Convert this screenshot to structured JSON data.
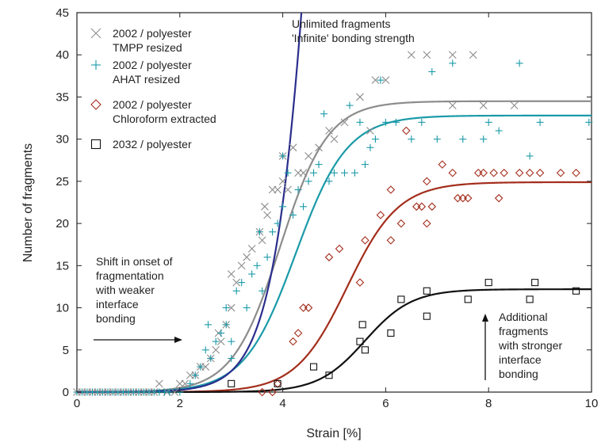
{
  "chart_data": {
    "type": "scatter",
    "xlabel": "Strain [%]",
    "ylabel": "Number of fragments",
    "xlim": [
      0,
      10
    ],
    "ylim": [
      0,
      45
    ],
    "xticks": [
      0,
      2,
      4,
      6,
      8,
      10
    ],
    "yticks": [
      0,
      5,
      10,
      15,
      20,
      25,
      30,
      35,
      40,
      45
    ],
    "legend_position": "top-left",
    "series": [
      {
        "name": "2002 / polyester TMPP resized",
        "legend_lines": [
          "2002 / polyester",
          "TMPP resized"
        ],
        "marker": "x",
        "color": "#8c8c8c",
        "points": [
          [
            0.0,
            0
          ],
          [
            0.1,
            0
          ],
          [
            0.2,
            0
          ],
          [
            0.3,
            0
          ],
          [
            0.4,
            0
          ],
          [
            0.5,
            0
          ],
          [
            0.6,
            0
          ],
          [
            0.7,
            0
          ],
          [
            0.8,
            0
          ],
          [
            0.9,
            0
          ],
          [
            1.0,
            0
          ],
          [
            1.1,
            0
          ],
          [
            1.2,
            0
          ],
          [
            1.3,
            0
          ],
          [
            1.4,
            0
          ],
          [
            1.5,
            0
          ],
          [
            1.6,
            1
          ],
          [
            1.75,
            0
          ],
          [
            1.9,
            0
          ],
          [
            2.0,
            1
          ],
          [
            2.1,
            1
          ],
          [
            2.2,
            2
          ],
          [
            2.3,
            2
          ],
          [
            2.4,
            3
          ],
          [
            2.5,
            3
          ],
          [
            2.6,
            4
          ],
          [
            2.7,
            5
          ],
          [
            2.75,
            7
          ],
          [
            2.8,
            6
          ],
          [
            2.9,
            8
          ],
          [
            3.0,
            10
          ],
          [
            3.0,
            14
          ],
          [
            3.1,
            13
          ],
          [
            3.2,
            15
          ],
          [
            3.3,
            16
          ],
          [
            3.4,
            17
          ],
          [
            3.55,
            19
          ],
          [
            3.6,
            18
          ],
          [
            3.65,
            22
          ],
          [
            3.7,
            21
          ],
          [
            3.8,
            24
          ],
          [
            3.9,
            24
          ],
          [
            4.0,
            25
          ],
          [
            4.0,
            28
          ],
          [
            4.1,
            24
          ],
          [
            4.2,
            29
          ],
          [
            4.3,
            26
          ],
          [
            4.4,
            26
          ],
          [
            4.5,
            28
          ],
          [
            4.7,
            29
          ],
          [
            4.9,
            31
          ],
          [
            5.0,
            30
          ],
          [
            5.2,
            32
          ],
          [
            5.5,
            35
          ],
          [
            5.7,
            31
          ],
          [
            5.8,
            37
          ],
          [
            6.0,
            37
          ],
          [
            6.5,
            40
          ],
          [
            6.8,
            40
          ],
          [
            7.3,
            40
          ],
          [
            7.7,
            40
          ],
          [
            7.3,
            34
          ],
          [
            7.9,
            34
          ],
          [
            8.5,
            34
          ]
        ]
      },
      {
        "name": "2002 / polyester AHAT resized",
        "legend_lines": [
          "2002 / polyester",
          "AHAT resized"
        ],
        "marker": "+",
        "color": "#1a9aa8",
        "points": [
          [
            0.0,
            0
          ],
          [
            0.1,
            0
          ],
          [
            0.2,
            0
          ],
          [
            0.3,
            0
          ],
          [
            0.4,
            0
          ],
          [
            0.5,
            0
          ],
          [
            0.6,
            0
          ],
          [
            0.7,
            0
          ],
          [
            0.8,
            0
          ],
          [
            0.9,
            0
          ],
          [
            1.0,
            0
          ],
          [
            1.1,
            0
          ],
          [
            1.2,
            0
          ],
          [
            1.3,
            0
          ],
          [
            1.4,
            0
          ],
          [
            1.5,
            0
          ],
          [
            1.6,
            0
          ],
          [
            1.7,
            0
          ],
          [
            1.8,
            0
          ],
          [
            2.0,
            0
          ],
          [
            2.2,
            1
          ],
          [
            2.3,
            2
          ],
          [
            2.4,
            3
          ],
          [
            2.5,
            5
          ],
          [
            2.55,
            8
          ],
          [
            2.6,
            4
          ],
          [
            2.7,
            6
          ],
          [
            2.8,
            7
          ],
          [
            2.9,
            10
          ],
          [
            2.9,
            8
          ],
          [
            3.0,
            4
          ],
          [
            3.0,
            6
          ],
          [
            3.1,
            12
          ],
          [
            3.2,
            13
          ],
          [
            3.3,
            10
          ],
          [
            3.4,
            14
          ],
          [
            3.5,
            15
          ],
          [
            3.55,
            19
          ],
          [
            3.6,
            12
          ],
          [
            3.7,
            16
          ],
          [
            3.8,
            19
          ],
          [
            3.9,
            20
          ],
          [
            4.0,
            22
          ],
          [
            4.0,
            28
          ],
          [
            4.1,
            26
          ],
          [
            4.2,
            21
          ],
          [
            4.3,
            24
          ],
          [
            4.4,
            22
          ],
          [
            4.5,
            25
          ],
          [
            4.6,
            26
          ],
          [
            4.7,
            27
          ],
          [
            4.8,
            33
          ],
          [
            4.9,
            25
          ],
          [
            5.0,
            26
          ],
          [
            5.2,
            26
          ],
          [
            5.3,
            34
          ],
          [
            5.4,
            26
          ],
          [
            5.5,
            32
          ],
          [
            5.6,
            27
          ],
          [
            5.7,
            29
          ],
          [
            5.8,
            30
          ],
          [
            5.9,
            37
          ],
          [
            6.0,
            32
          ],
          [
            6.2,
            32
          ],
          [
            6.5,
            30
          ],
          [
            6.7,
            32
          ],
          [
            6.9,
            38
          ],
          [
            7.0,
            30
          ],
          [
            7.3,
            39
          ],
          [
            7.5,
            30
          ],
          [
            7.9,
            30
          ],
          [
            8.0,
            32
          ],
          [
            8.2,
            31
          ],
          [
            8.6,
            39
          ],
          [
            8.8,
            28
          ],
          [
            9.0,
            32
          ],
          [
            9.95,
            32
          ]
        ]
      },
      {
        "name": "2002 / polyester Chloroform extracted",
        "legend_lines": [
          "2002 / polyester",
          "Chloroform extracted"
        ],
        "marker": "diamond",
        "color": "#a32d1c",
        "points": [
          [
            3.6,
            0
          ],
          [
            3.8,
            0
          ],
          [
            3.9,
            1
          ],
          [
            4.2,
            6
          ],
          [
            4.3,
            7
          ],
          [
            4.4,
            10
          ],
          [
            4.5,
            10
          ],
          [
            4.9,
            16
          ],
          [
            5.1,
            17
          ],
          [
            5.5,
            13
          ],
          [
            5.6,
            18
          ],
          [
            5.9,
            21
          ],
          [
            6.1,
            18
          ],
          [
            6.1,
            24
          ],
          [
            6.3,
            20
          ],
          [
            6.4,
            31
          ],
          [
            6.6,
            22
          ],
          [
            6.7,
            22
          ],
          [
            6.8,
            25
          ],
          [
            6.8,
            20
          ],
          [
            6.9,
            22
          ],
          [
            7.1,
            27
          ],
          [
            7.3,
            26
          ],
          [
            7.4,
            23
          ],
          [
            7.5,
            23
          ],
          [
            7.6,
            23
          ],
          [
            7.8,
            26
          ],
          [
            7.9,
            26
          ],
          [
            8.1,
            26
          ],
          [
            8.2,
            23
          ],
          [
            8.3,
            26
          ],
          [
            8.6,
            26
          ],
          [
            8.8,
            26
          ],
          [
            9.0,
            26
          ],
          [
            9.4,
            26
          ],
          [
            9.7,
            26
          ]
        ]
      },
      {
        "name": "2032 / polyester",
        "legend_lines": [
          "2032 / polyester"
        ],
        "marker": "square",
        "color": "#111111",
        "points": [
          [
            3.0,
            1
          ],
          [
            3.9,
            1
          ],
          [
            4.6,
            3
          ],
          [
            4.9,
            2
          ],
          [
            5.5,
            6
          ],
          [
            5.55,
            8
          ],
          [
            5.6,
            5
          ],
          [
            6.1,
            7
          ],
          [
            6.3,
            11
          ],
          [
            6.8,
            12
          ],
          [
            6.8,
            9
          ],
          [
            7.6,
            11
          ],
          [
            8.0,
            13
          ],
          [
            8.8,
            11
          ],
          [
            8.9,
            13
          ],
          [
            9.7,
            12
          ]
        ]
      }
    ],
    "curves": [
      {
        "role": "model",
        "color": "#8c8c8c",
        "L": 34.5,
        "k": 2.15,
        "x0": 3.95
      },
      {
        "role": "model",
        "color": "#1a9aa8",
        "L": 32.8,
        "k": 2.0,
        "x0": 4.25
      },
      {
        "role": "model",
        "color": "#a32d1c",
        "L": 24.9,
        "k": 2.0,
        "x0": 5.25
      },
      {
        "role": "model",
        "color": "#111111",
        "L": 12.2,
        "k": 2.2,
        "x0": 5.6
      },
      {
        "role": "unlimited",
        "color": "#2b2e8c",
        "L": 200,
        "k": 2.3,
        "x0": 4.9
      }
    ],
    "annotations": {
      "unlimited": [
        "Unlimited fragments",
        "'Infinite' bonding strength"
      ],
      "shift": [
        "Shift in onset of",
        "fragmentation",
        "with weaker",
        "interface",
        "bonding"
      ],
      "additional": [
        "Additional",
        "fragments",
        "with stronger",
        "interface",
        "bonding"
      ]
    }
  }
}
